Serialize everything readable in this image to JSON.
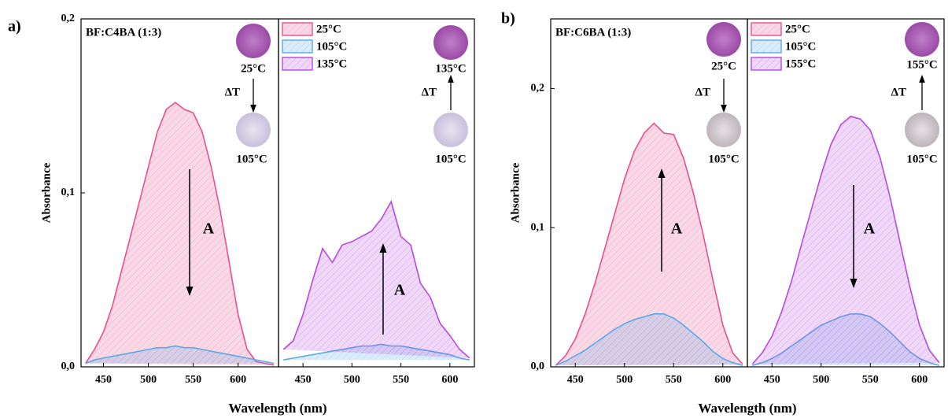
{
  "chart_data": [
    {
      "type": "area",
      "label": "a)",
      "title": "BF:C4BA (1:3)",
      "ylabel": "Absorbance",
      "xlabel": "Wavelength (nm)",
      "ylim": [
        0,
        0.2
      ],
      "yticks": [
        {
          "value": 0,
          "label": "0,0"
        },
        {
          "value": 0.1,
          "label": "0,1"
        },
        {
          "value": 0.2,
          "label": "0,2"
        }
      ],
      "panels": [
        {
          "xlim": [
            425,
            645
          ],
          "xticks": [
            450,
            500,
            550,
            600
          ],
          "x": [
            430,
            440,
            450,
            460,
            470,
            480,
            490,
            500,
            510,
            520,
            530,
            540,
            550,
            560,
            570,
            580,
            590,
            600,
            610,
            620,
            630,
            640
          ],
          "series": [
            {
              "name": "25°C",
              "color": "#e8508f",
              "values": [
                0.002,
                0.01,
                0.02,
                0.035,
                0.055,
                0.075,
                0.095,
                0.115,
                0.135,
                0.148,
                0.152,
                0.148,
                0.146,
                0.135,
                0.115,
                0.09,
                0.06,
                0.03,
                0.01,
                0.003,
                0.002,
                0.001
              ]
            },
            {
              "name": "105°C",
              "color": "#5aa9e6",
              "values": [
                0.002,
                0.004,
                0.005,
                0.006,
                0.007,
                0.008,
                0.009,
                0.01,
                0.011,
                0.011,
                0.012,
                0.011,
                0.011,
                0.01,
                0.009,
                0.008,
                0.007,
                0.006,
                0.005,
                0.004,
                0.003,
                0.002
              ]
            }
          ],
          "annotations": {
            "top": "25°C",
            "delta": "ΔT",
            "bottom": "105°C",
            "arrow_label": "A"
          }
        },
        {
          "xlim": [
            425,
            625
          ],
          "xticks": [
            450,
            500,
            550,
            600
          ],
          "x": [
            430,
            440,
            450,
            460,
            470,
            480,
            490,
            500,
            510,
            520,
            530,
            540,
            550,
            560,
            570,
            580,
            590,
            600,
            610,
            620
          ],
          "series": [
            {
              "name": "105°C",
              "color": "#5aa9e6",
              "values": [
                0.004,
                0.005,
                0.006,
                0.007,
                0.008,
                0.009,
                0.01,
                0.011,
                0.012,
                0.012,
                0.013,
                0.012,
                0.012,
                0.011,
                0.01,
                0.009,
                0.008,
                0.007,
                0.005,
                0.004
              ]
            },
            {
              "name": "135°C",
              "color": "#b44be0",
              "values": [
                0.01,
                0.015,
                0.03,
                0.05,
                0.068,
                0.06,
                0.07,
                0.072,
                0.075,
                0.078,
                0.085,
                0.095,
                0.075,
                0.07,
                0.048,
                0.04,
                0.025,
                0.018,
                0.01,
                0.005
              ]
            }
          ],
          "annotations": {
            "top": "135°C",
            "delta": "ΔT",
            "bottom": "105°C",
            "arrow_label": "A"
          }
        }
      ]
    },
    {
      "type": "area",
      "label": "b)",
      "title": "BF:C6BA (1:3)",
      "ylabel": "Absorbance",
      "xlabel": "Wavelength (nm)",
      "ylim": [
        0,
        0.25
      ],
      "yticks": [
        {
          "value": 0,
          "label": "0,0"
        },
        {
          "value": 0.1,
          "label": "0,1"
        },
        {
          "value": 0.2,
          "label": "0,2"
        }
      ],
      "panels": [
        {
          "xlim": [
            425,
            625
          ],
          "xticks": [
            450,
            500,
            550,
            600
          ],
          "x": [
            430,
            440,
            450,
            460,
            470,
            480,
            490,
            500,
            510,
            520,
            530,
            540,
            550,
            560,
            570,
            580,
            590,
            600,
            610,
            620
          ],
          "series": [
            {
              "name": "25°C",
              "color": "#e8508f",
              "values": [
                0.001,
                0.008,
                0.02,
                0.038,
                0.06,
                0.085,
                0.11,
                0.135,
                0.155,
                0.168,
                0.175,
                0.168,
                0.167,
                0.15,
                0.125,
                0.095,
                0.062,
                0.03,
                0.01,
                0.002
              ]
            },
            {
              "name": "105°C",
              "color": "#5aa9e6",
              "values": [
                0.001,
                0.004,
                0.008,
                0.012,
                0.017,
                0.022,
                0.027,
                0.031,
                0.034,
                0.036,
                0.038,
                0.038,
                0.035,
                0.03,
                0.024,
                0.018,
                0.011,
                0.006,
                0.003,
                0.001
              ]
            }
          ],
          "annotations": {
            "top": "25°C",
            "delta": "ΔT",
            "bottom": "105°C",
            "arrow_label": "A"
          }
        },
        {
          "xlim": [
            425,
            625
          ],
          "xticks": [
            450,
            500,
            550,
            600
          ],
          "x": [
            430,
            440,
            450,
            460,
            470,
            480,
            490,
            500,
            510,
            520,
            530,
            540,
            550,
            560,
            570,
            580,
            590,
            600,
            610,
            620
          ],
          "series": [
            {
              "name": "105°C",
              "color": "#5aa9e6",
              "values": [
                0.001,
                0.003,
                0.006,
                0.01,
                0.015,
                0.02,
                0.025,
                0.03,
                0.033,
                0.036,
                0.038,
                0.038,
                0.036,
                0.031,
                0.025,
                0.018,
                0.011,
                0.006,
                0.003,
                0.001
              ]
            },
            {
              "name": "155°C",
              "color": "#b44be0",
              "values": [
                0.002,
                0.01,
                0.022,
                0.04,
                0.062,
                0.088,
                0.113,
                0.138,
                0.16,
                0.174,
                0.18,
                0.178,
                0.17,
                0.15,
                0.122,
                0.09,
                0.058,
                0.03,
                0.012,
                0.003
              ]
            }
          ],
          "annotations": {
            "top": "155°C",
            "delta": "ΔT",
            "bottom": "105°C",
            "arrow_label": "A"
          }
        }
      ]
    }
  ]
}
